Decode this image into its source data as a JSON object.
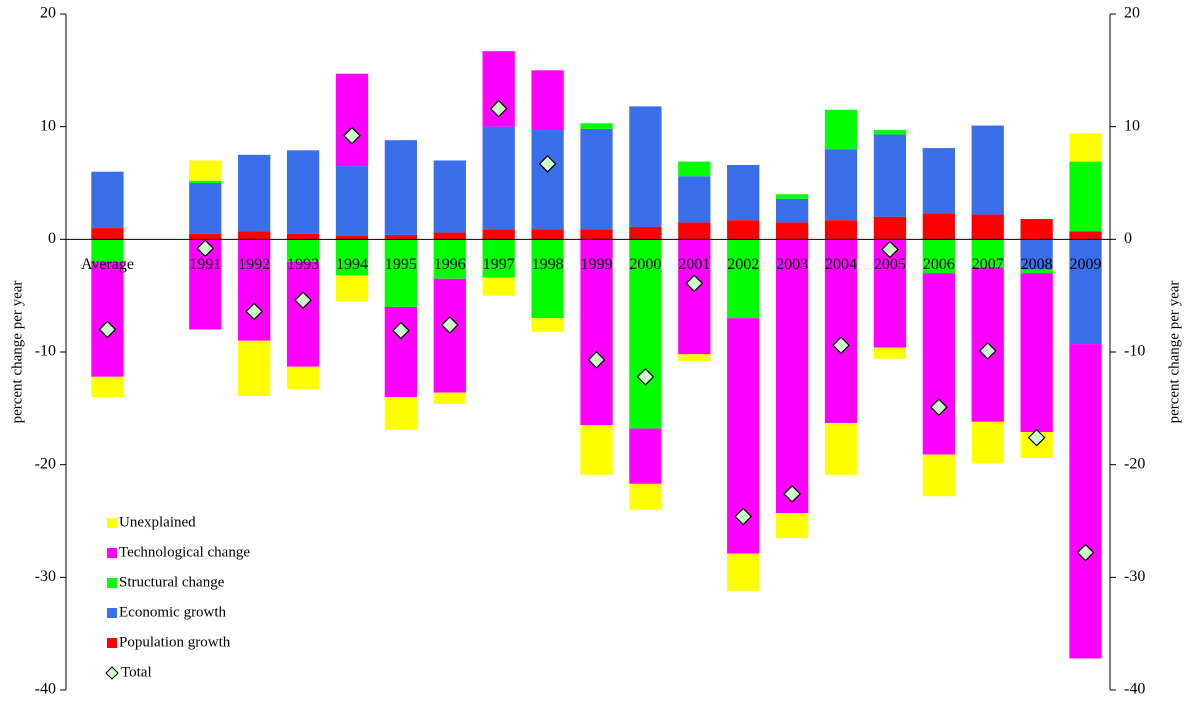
{
  "chart_data": {
    "type": "stacked_bar",
    "y_label": "percent change per year",
    "y2_label": "percent change per year",
    "categories": [
      "Average",
      null,
      "1991",
      "1992",
      "1993",
      "1994",
      "1995",
      "1996",
      "1997",
      "1998",
      "1999",
      "2000",
      "2001",
      "2002",
      "2003",
      "2004",
      "2005",
      "2006",
      "2007",
      "2008",
      "2009"
    ],
    "series": [
      {
        "name": "Population growth",
        "color": "#ff0000",
        "values": [
          1.0,
          null,
          0.5,
          0.7,
          0.5,
          0.3,
          0.4,
          0.6,
          0.9,
          0.9,
          0.9,
          1.1,
          1.5,
          1.7,
          1.5,
          1.7,
          2.0,
          2.3,
          2.2,
          1.8,
          0.7
        ]
      },
      {
        "name": "Economic growth",
        "color": "#3b6eea",
        "values": [
          5.0,
          null,
          4.5,
          6.8,
          7.4,
          6.2,
          8.4,
          6.4,
          9.1,
          8.8,
          8.9,
          10.7,
          4.1,
          4.9,
          2.1,
          6.3,
          7.3,
          5.8,
          7.9,
          -2.7,
          -9.3
        ]
      },
      {
        "name": "Structural change",
        "color": "#00ff00",
        "values": [
          -2.0,
          null,
          0.2,
          0,
          -2.0,
          -3.2,
          -6.0,
          -3.5,
          -3.4,
          -7.0,
          0.5,
          -16.8,
          1.3,
          -7.0,
          0.4,
          3.5,
          0.4,
          -3.0,
          -2.5,
          -0.3,
          6.2
        ]
      },
      {
        "name": "Technological change",
        "color": "#ff00ff",
        "values": [
          -10.2,
          null,
          -8.0,
          -9.0,
          -9.3,
          8.2,
          -8.0,
          -10.1,
          6.7,
          5.3,
          -16.5,
          -4.9,
          -10.2,
          -20.9,
          -24.3,
          -16.3,
          -9.6,
          -16.1,
          -13.7,
          -14.1,
          -27.9
        ]
      },
      {
        "name": "Unexplained",
        "color": "#ffff00",
        "values": [
          -1.8,
          null,
          1.8,
          -4.9,
          -2.0,
          -2.3,
          -2.9,
          -1.0,
          -1.6,
          -1.2,
          -4.4,
          -2.3,
          -0.6,
          -3.3,
          -2.2,
          -4.6,
          -1.0,
          -3.7,
          -3.7,
          -2.3,
          2.5
        ]
      }
    ],
    "total": {
      "name": "Total",
      "color": "#ccffcc",
      "values": [
        -8.0,
        null,
        -0.8,
        -6.4,
        -5.4,
        9.2,
        -8.1,
        -7.6,
        11.6,
        6.7,
        -10.7,
        -12.2,
        -3.9,
        -24.6,
        -22.6,
        -9.4,
        -0.9,
        -14.9,
        -9.9,
        -17.6,
        -27.8
      ]
    },
    "ylim": [
      -40,
      20
    ],
    "yticks": [
      -40,
      -30,
      -20,
      -10,
      0,
      10,
      20
    ],
    "y2lim": [
      -40,
      20
    ],
    "y2ticks": [
      -40,
      -30,
      -20,
      -10,
      0,
      10,
      20
    ],
    "legend": "lower left"
  }
}
